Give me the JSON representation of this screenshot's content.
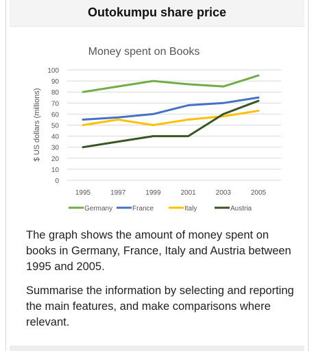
{
  "header": {
    "title": "Outokumpu share price"
  },
  "chart_data": {
    "type": "line",
    "title": "Money spent on Books",
    "xlabel": "",
    "ylabel": "$ US dollars (millions)",
    "x": [
      1995,
      1997,
      1999,
      2001,
      2003,
      2005
    ],
    "ylim": [
      0,
      100
    ],
    "yticks": [
      0,
      10,
      20,
      30,
      40,
      50,
      60,
      70,
      80,
      90,
      100
    ],
    "grid": true,
    "legend": "bottom",
    "series": [
      {
        "name": "Germany",
        "color": "#70ad47",
        "values": [
          80,
          85,
          90,
          87,
          85,
          95
        ]
      },
      {
        "name": "France",
        "color": "#4472c4",
        "values": [
          55,
          57,
          60,
          68,
          70,
          75
        ]
      },
      {
        "name": "Italy",
        "color": "#ffc000",
        "values": [
          50,
          55,
          50,
          55,
          58,
          63
        ]
      },
      {
        "name": "Austria",
        "color": "#375623",
        "values": [
          30,
          35,
          40,
          40,
          60,
          72
        ]
      }
    ]
  },
  "description": {
    "paragraph1": "The graph shows the amount of money spent on books in Germany, France, Italy and Austria between 1995 and 2005.",
    "paragraph2": "Summarise the information by selecting and reporting the main features, and make comparisons where relevant."
  }
}
